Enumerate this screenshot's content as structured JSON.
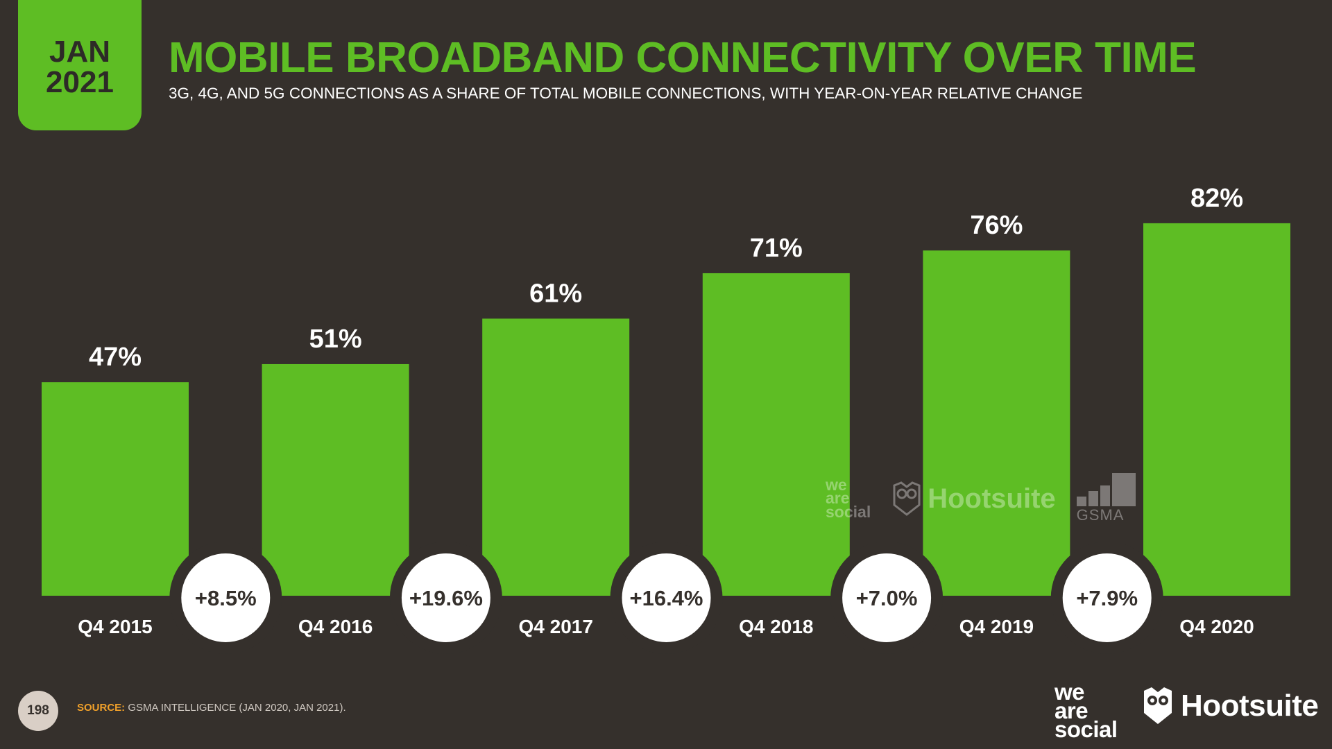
{
  "header": {
    "date_month": "JAN",
    "date_year": "2021",
    "title": "MOBILE BROADBAND CONNECTIVITY OVER TIME",
    "subtitle": "3G, 4G, AND 5G CONNECTIONS AS A SHARE OF TOTAL MOBILE CONNECTIONS, WITH YEAR-ON-YEAR RELATIVE CHANGE"
  },
  "colors": {
    "background": "#35302c",
    "accent": "#5ebd24",
    "bar": "#5ebd24",
    "bubble": "#ffffff",
    "text": "#ffffff",
    "source_label": "#f0a02a"
  },
  "chart_data": {
    "type": "bar",
    "categories": [
      "Q4 2015",
      "Q4 2016",
      "Q4 2017",
      "Q4 2018",
      "Q4 2019",
      "Q4 2020"
    ],
    "values": [
      47,
      51,
      61,
      71,
      76,
      82
    ],
    "value_labels": [
      "47%",
      "51%",
      "61%",
      "71%",
      "76%",
      "82%"
    ],
    "yoy_change_labels": [
      "+8.5%",
      "+19.6%",
      "+16.4%",
      "+7.0%",
      "+7.9%"
    ],
    "unit": "%",
    "ylim": [
      0,
      100
    ],
    "grid": false,
    "legend": "none"
  },
  "watermark": {
    "was_lines": [
      "we",
      "are",
      "social"
    ],
    "hootsuite": "Hootsuite",
    "gsma": "GSMA"
  },
  "footer": {
    "page_number": "198",
    "source_label": "SOURCE:",
    "source_text": "GSMA INTELLIGENCE (JAN 2020, JAN 2021).",
    "was_lines": [
      "we",
      "are",
      "social"
    ],
    "hootsuite": "Hootsuite"
  }
}
